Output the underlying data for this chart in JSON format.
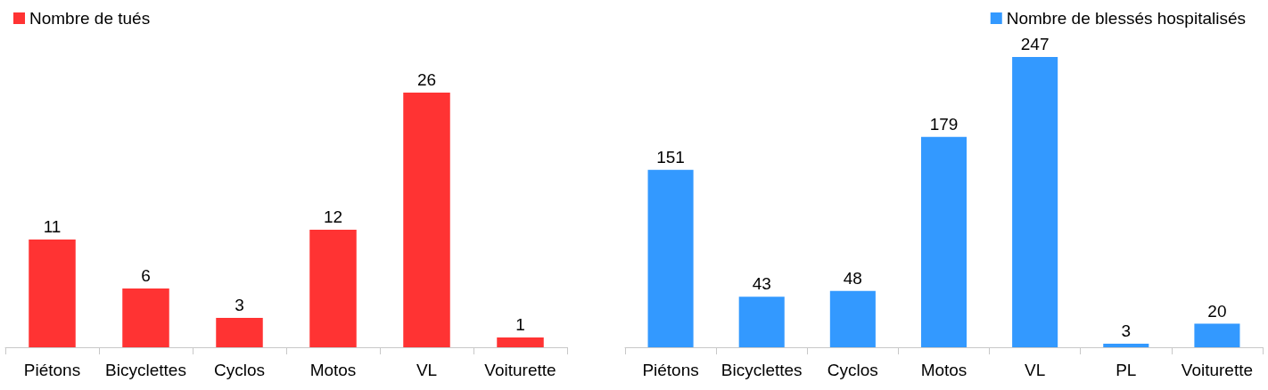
{
  "chart_data": [
    {
      "type": "bar",
      "categories": [
        "Piétons",
        "Bicyclettes",
        "Cyclos",
        "Motos",
        "VL",
        "Voiturette"
      ],
      "series": [
        {
          "name": "Nombre de tués",
          "color": "#ff3333",
          "values": [
            11,
            6,
            3,
            12,
            26,
            1
          ]
        }
      ],
      "data_labels": true,
      "legend": "top left"
    },
    {
      "type": "bar",
      "categories": [
        "Piétons",
        "Bicyclettes",
        "Cyclos",
        "Motos",
        "VL",
        "PL",
        "Voiturette"
      ],
      "series": [
        {
          "name": "Nombre de blessés hospitalisés",
          "color": "#3399ff",
          "values": [
            151,
            43,
            48,
            179,
            247,
            3,
            20
          ]
        }
      ],
      "data_labels": true,
      "legend": "top right"
    }
  ]
}
